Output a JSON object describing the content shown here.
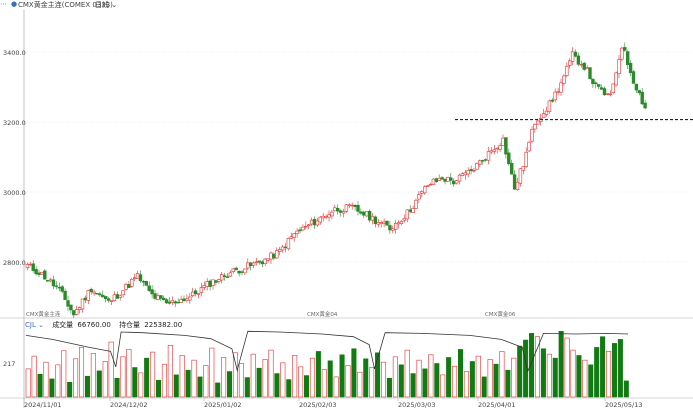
{
  "header": {
    "menu_icon": "ellipsis-icon",
    "symbol_marker": "dot-icon",
    "instrument_title": "CMX黄金主连(COMEX 0333)",
    "period_label": "日线",
    "period_dropdown_icon": "chevron-down-icon"
  },
  "price_axis": {
    "ticks": [
      "3400.0",
      "3200.0",
      "3000.0",
      "2800.0"
    ],
    "tick_values": [
      3400,
      3200,
      3000,
      2800
    ]
  },
  "contract_labels": [
    "CMX黄金主连",
    "CMX黄金04",
    "CMX黄金06"
  ],
  "support_line": {
    "value": 3207,
    "style": "dashed"
  },
  "volume_panel": {
    "indicator_name": "CJL",
    "volume_label": "成交量",
    "volume_value": "66760.00",
    "open_interest_label": "持仓量",
    "open_interest_value": "225382.00",
    "axis_tick": "217"
  },
  "date_axis": [
    "2024/11/01",
    "2024/12/02",
    "2025/01/02",
    "2025/02/03",
    "2025/03/03",
    "2025/04/01",
    "2025/05/13"
  ],
  "colors": {
    "up": "#e03030",
    "down": "#2a8a2a",
    "volume_up_fill": "#ffffff",
    "volume_down_fill": "#127a12",
    "grid_line": "#dddddd",
    "open_interest_line": "#333333",
    "accent": "#3a6fc4"
  },
  "chart_data": {
    "type": "candlestick",
    "y_axis_range": [
      2640,
      3520
    ],
    "anchors": [
      {
        "i": 0,
        "price": 2790
      },
      {
        "i": 5,
        "price": 2765
      },
      {
        "i": 11,
        "price": 2720
      },
      {
        "i": 16,
        "price": 2650
      },
      {
        "i": 22,
        "price": 2725
      },
      {
        "i": 28,
        "price": 2685
      },
      {
        "i": 33,
        "price": 2720
      },
      {
        "i": 38,
        "price": 2760
      },
      {
        "i": 43,
        "price": 2705
      },
      {
        "i": 48,
        "price": 2680
      },
      {
        "i": 56,
        "price": 2700
      },
      {
        "i": 63,
        "price": 2740
      },
      {
        "i": 70,
        "price": 2770
      },
      {
        "i": 77,
        "price": 2790
      },
      {
        "i": 83,
        "price": 2810
      },
      {
        "i": 87,
        "price": 2830
      },
      {
        "i": 92,
        "price": 2880
      },
      {
        "i": 100,
        "price": 2920
      },
      {
        "i": 106,
        "price": 2950
      },
      {
        "i": 112,
        "price": 2955
      },
      {
        "i": 119,
        "price": 2925
      },
      {
        "i": 125,
        "price": 2895
      },
      {
        "i": 131,
        "price": 2940
      },
      {
        "i": 138,
        "price": 3020
      },
      {
        "i": 143,
        "price": 3040
      },
      {
        "i": 147,
        "price": 3030
      },
      {
        "i": 153,
        "price": 3060
      },
      {
        "i": 159,
        "price": 3110
      },
      {
        "i": 164,
        "price": 3150
      },
      {
        "i": 168,
        "price": 3010
      },
      {
        "i": 171,
        "price": 3080
      },
      {
        "i": 175,
        "price": 3200
      },
      {
        "i": 180,
        "price": 3250
      },
      {
        "i": 184,
        "price": 3310
      },
      {
        "i": 188,
        "price": 3390
      },
      {
        "i": 192,
        "price": 3360
      },
      {
        "i": 196,
        "price": 3300
      },
      {
        "i": 201,
        "price": 3270
      },
      {
        "i": 205,
        "price": 3420
      },
      {
        "i": 209,
        "price": 3320
      },
      {
        "i": 213,
        "price": 3240
      }
    ],
    "volume_bars": [
      [
        0.42,
        0
      ],
      [
        0.61,
        0
      ],
      [
        0.34,
        1
      ],
      [
        0.52,
        0
      ],
      [
        0.27,
        1
      ],
      [
        0.48,
        0
      ],
      [
        0.69,
        0
      ],
      [
        0.22,
        1
      ],
      [
        0.57,
        0
      ],
      [
        0.74,
        0
      ],
      [
        0.31,
        1
      ],
      [
        0.65,
        0
      ],
      [
        0.39,
        1
      ],
      [
        0.53,
        0
      ],
      [
        0.82,
        0
      ],
      [
        0.28,
        1
      ],
      [
        0.6,
        0
      ],
      [
        0.71,
        0
      ],
      [
        0.44,
        1
      ],
      [
        0.36,
        0
      ],
      [
        0.58,
        1
      ],
      [
        0.67,
        0
      ],
      [
        0.25,
        1
      ],
      [
        0.49,
        0
      ],
      [
        0.77,
        0
      ],
      [
        0.33,
        1
      ],
      [
        0.62,
        0
      ],
      [
        0.4,
        1
      ],
      [
        0.55,
        0
      ],
      [
        0.3,
        1
      ],
      [
        0.47,
        0
      ],
      [
        0.73,
        0
      ],
      [
        0.21,
        1
      ],
      [
        0.59,
        0
      ],
      [
        0.38,
        1
      ],
      [
        0.66,
        0
      ],
      [
        0.5,
        0
      ],
      [
        0.29,
        1
      ],
      [
        0.64,
        0
      ],
      [
        0.43,
        1
      ],
      [
        0.56,
        0
      ],
      [
        0.7,
        0
      ],
      [
        0.35,
        1
      ],
      [
        0.51,
        0
      ],
      [
        0.26,
        1
      ],
      [
        0.62,
        0
      ],
      [
        0.45,
        0
      ],
      [
        0.32,
        1
      ],
      [
        0.58,
        0
      ],
      [
        0.68,
        1
      ],
      [
        0.41,
        0
      ],
      [
        0.54,
        1
      ],
      [
        0.3,
        0
      ],
      [
        0.63,
        1
      ],
      [
        0.47,
        0
      ],
      [
        0.72,
        1
      ],
      [
        0.37,
        0
      ],
      [
        0.57,
        1
      ],
      [
        0.44,
        0
      ],
      [
        0.66,
        1
      ],
      [
        0.52,
        0
      ],
      [
        0.28,
        1
      ],
      [
        0.6,
        0
      ],
      [
        0.48,
        1
      ],
      [
        0.7,
        0
      ],
      [
        0.35,
        1
      ],
      [
        0.55,
        0
      ],
      [
        0.42,
        1
      ],
      [
        0.63,
        0
      ],
      [
        0.5,
        1
      ],
      [
        0.33,
        0
      ],
      [
        0.59,
        1
      ],
      [
        0.46,
        0
      ],
      [
        0.71,
        1
      ],
      [
        0.38,
        0
      ],
      [
        0.53,
        1
      ],
      [
        0.61,
        0
      ],
      [
        0.3,
        1
      ],
      [
        0.56,
        0
      ],
      [
        0.49,
        1
      ],
      [
        0.68,
        0
      ],
      [
        0.4,
        1
      ],
      [
        0.58,
        0
      ],
      [
        0.76,
        1
      ],
      [
        0.85,
        1
      ],
      [
        0.95,
        1
      ],
      [
        0.9,
        0
      ],
      [
        0.72,
        1
      ],
      [
        0.64,
        0
      ],
      [
        0.58,
        1
      ],
      [
        0.98,
        1
      ],
      [
        0.88,
        0
      ],
      [
        0.7,
        0
      ],
      [
        0.62,
        1
      ],
      [
        0.55,
        0
      ],
      [
        0.48,
        1
      ],
      [
        0.74,
        1
      ],
      [
        0.9,
        1
      ],
      [
        0.68,
        0
      ],
      [
        0.8,
        1
      ],
      [
        0.86,
        1
      ],
      [
        0.24,
        1
      ]
    ],
    "open_interest": [
      [
        0,
        0.92
      ],
      [
        5,
        0.86
      ],
      [
        12,
        0.74
      ],
      [
        16,
        0.68
      ],
      [
        17,
        0.45
      ],
      [
        18,
        0.97
      ],
      [
        22,
        0.96
      ],
      [
        30,
        0.92
      ],
      [
        35,
        0.87
      ],
      [
        39,
        0.72
      ],
      [
        40,
        0.4
      ],
      [
        42,
        0.98
      ],
      [
        48,
        0.97
      ],
      [
        56,
        0.94
      ],
      [
        62,
        0.9
      ],
      [
        65,
        0.78
      ],
      [
        66,
        0.42
      ],
      [
        68,
        0.96
      ],
      [
        75,
        0.95
      ],
      [
        84,
        0.92
      ],
      [
        90,
        0.86
      ],
      [
        94,
        0.74
      ],
      [
        95,
        0.38
      ],
      [
        98,
        0.95
      ],
      [
        104,
        0.94
      ],
      [
        110,
        0.95
      ],
      [
        114,
        0.94
      ]
    ]
  }
}
